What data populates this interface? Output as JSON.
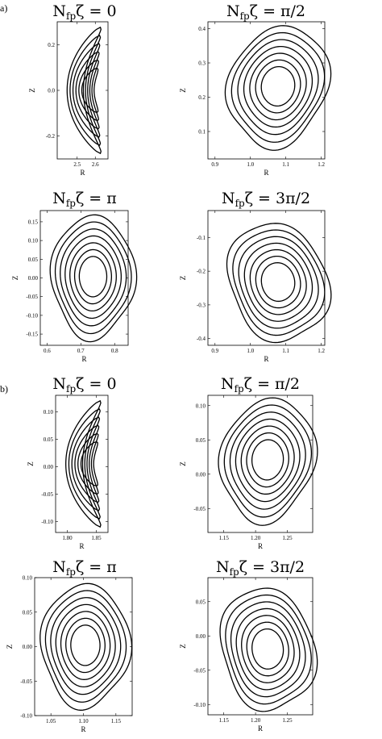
{
  "figure": {
    "section_labels": [
      {
        "text": "a)"
      },
      {
        "text": "b)"
      }
    ]
  },
  "chart_data": [
    {
      "type": "line",
      "subtype": "contour",
      "section": "a",
      "title_main": "N",
      "title_sub": "fp",
      "title_rest": "ζ = 0",
      "xlabel": "R",
      "ylabel": "Z",
      "xlim": [
        2.39,
        2.67
      ],
      "ylim": [
        -0.3,
        0.3
      ],
      "xticks": [
        "2.5",
        "2.6"
      ],
      "xtick_values": [
        2.5,
        2.6
      ],
      "yticks": [
        "-0.2",
        "0.0",
        "0.2"
      ],
      "ytick_values": [
        -0.2,
        0.0,
        0.2
      ],
      "series": [],
      "shape": "bean",
      "axis": [
        2.62,
        0.0
      ],
      "nested_surfaces": 6
    },
    {
      "type": "line",
      "subtype": "contour",
      "section": "a",
      "title_main": "N",
      "title_sub": "fp",
      "title_rest": "ζ = π/2",
      "xlabel": "R",
      "ylabel": "Z",
      "xlim": [
        0.88,
        1.21
      ],
      "ylim": [
        0.02,
        0.42
      ],
      "xticks": [
        "0.9",
        "1.0",
        "1.1",
        "1.2"
      ],
      "xtick_values": [
        0.9,
        1.0,
        1.1,
        1.2
      ],
      "yticks": [
        "0.1",
        "0.2",
        "0.3",
        "0.4"
      ],
      "ytick_values": [
        0.1,
        0.2,
        0.3,
        0.4
      ],
      "series": [],
      "shape": "wobbly",
      "axis": [
        1.085,
        0.215
      ],
      "nested_surfaces": 7
    },
    {
      "type": "line",
      "subtype": "contour",
      "section": "a",
      "title_main": "N",
      "title_sub": "fp",
      "title_rest": "ζ = π",
      "xlabel": "R",
      "ylabel": "Z",
      "xlim": [
        0.58,
        0.84
      ],
      "ylim": [
        -0.18,
        0.18
      ],
      "xticks": [
        "0.6",
        "0.7",
        "0.8"
      ],
      "xtick_values": [
        0.6,
        0.7,
        0.8
      ],
      "yticks": [
        "0.15",
        "0.10",
        "0.05",
        "0.00",
        "-0.05",
        "-0.10",
        "-0.15"
      ],
      "ytick_values": [
        0.15,
        0.1,
        0.05,
        0.0,
        -0.05,
        -0.1,
        -0.15
      ],
      "series": [],
      "shape": "wobbly",
      "axis": [
        0.733,
        0.0
      ],
      "nested_surfaces": 7
    },
    {
      "type": "line",
      "subtype": "contour",
      "section": "a",
      "title_main": "N",
      "title_sub": "fp",
      "title_rest": "ζ = 3π/2",
      "xlabel": "R",
      "ylabel": "Z",
      "xlim": [
        0.88,
        1.21
      ],
      "ylim": [
        -0.42,
        -0.02
      ],
      "xticks": [
        "0.9",
        "1.0",
        "1.1",
        "1.2"
      ],
      "xtick_values": [
        0.9,
        1.0,
        1.1,
        1.2
      ],
      "yticks": [
        "-0.1",
        "-0.2",
        "-0.3",
        "-0.4"
      ],
      "ytick_values": [
        -0.1,
        -0.2,
        -0.3,
        -0.4
      ],
      "series": [],
      "shape": "wobbly",
      "axis": [
        1.085,
        -0.215
      ],
      "nested_surfaces": 7
    },
    {
      "type": "line",
      "subtype": "contour",
      "section": "b",
      "title_main": "N",
      "title_sub": "fp",
      "title_rest": "ζ = 0",
      "xlabel": "R",
      "ylabel": "Z",
      "xlim": [
        1.78,
        1.87
      ],
      "ylim": [
        -0.12,
        0.13
      ],
      "xticks": [
        "1.80",
        "1.85"
      ],
      "xtick_values": [
        1.8,
        1.85
      ],
      "yticks": [
        "0.10",
        "0.05",
        "0.00",
        "-0.05",
        "-0.10"
      ],
      "ytick_values": [
        0.1,
        0.05,
        0.0,
        -0.05,
        -0.1
      ],
      "series": [],
      "shape": "bean",
      "axis": [
        1.847,
        0.0
      ],
      "nested_surfaces": 6
    },
    {
      "type": "line",
      "subtype": "contour",
      "section": "b",
      "title_main": "N",
      "title_sub": "fp",
      "title_rest": "ζ = π/2",
      "xlabel": "R",
      "ylabel": "Z",
      "xlim": [
        1.125,
        1.29
      ],
      "ylim": [
        -0.085,
        0.115
      ],
      "xticks": [
        "1.15",
        "1.20",
        "1.25"
      ],
      "xtick_values": [
        1.15,
        1.2,
        1.25
      ],
      "yticks": [
        "0.10",
        "0.05",
        "0.00",
        "-0.05"
      ],
      "ytick_values": [
        0.1,
        0.05,
        0.0,
        -0.05
      ],
      "series": [],
      "shape": "wobbly",
      "axis": [
        1.21,
        0.02
      ],
      "nested_surfaces": 7
    },
    {
      "type": "line",
      "subtype": "contour",
      "section": "b",
      "title_main": "N",
      "title_sub": "fp",
      "title_rest": "ζ = π",
      "xlabel": "R",
      "ylabel": "Z",
      "xlim": [
        1.025,
        1.175
      ],
      "ylim": [
        -0.1,
        0.1
      ],
      "xticks": [
        "1.05",
        "1.10",
        "1.15"
      ],
      "xtick_values": [
        1.05,
        1.1,
        1.15
      ],
      "yticks": [
        "0.10",
        "0.05",
        "0.00",
        "-0.05",
        "-0.10"
      ],
      "ytick_values": [
        0.1,
        0.05,
        0.0,
        -0.05,
        -0.1
      ],
      "series": [],
      "shape": "wobbly",
      "axis": [
        1.1,
        0.0
      ],
      "nested_surfaces": 7
    },
    {
      "type": "line",
      "subtype": "contour",
      "section": "b",
      "title_main": "N",
      "title_sub": "fp",
      "title_rest": "ζ = 3π/2",
      "xlabel": "R",
      "ylabel": "Z",
      "xlim": [
        1.125,
        1.29
      ],
      "ylim": [
        -0.115,
        0.085
      ],
      "xticks": [
        "1.15",
        "1.20",
        "1.25"
      ],
      "xtick_values": [
        1.15,
        1.2,
        1.25
      ],
      "yticks": [
        "0.05",
        "0.00",
        "-0.05",
        "-0.10"
      ],
      "ytick_values": [
        0.05,
        0.0,
        -0.05,
        -0.1
      ],
      "series": [],
      "shape": "wobbly",
      "axis": [
        1.21,
        -0.02
      ],
      "nested_surfaces": 7
    }
  ]
}
